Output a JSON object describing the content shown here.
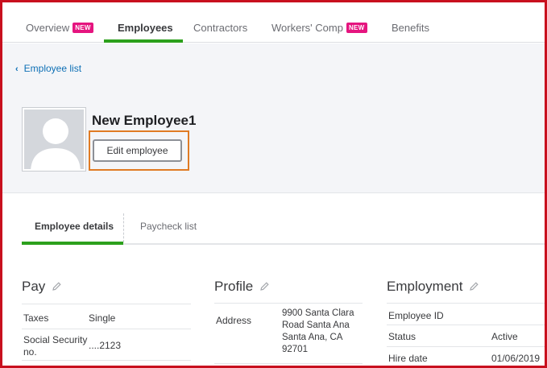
{
  "nav": {
    "tabs": [
      {
        "label": "Overview",
        "badge": "NEW"
      },
      {
        "label": "Employees",
        "badge": ""
      },
      {
        "label": "Contractors",
        "badge": ""
      },
      {
        "label": "Workers' Comp",
        "badge": "NEW"
      },
      {
        "label": "Benefits",
        "badge": ""
      }
    ],
    "active_tab": "Employees"
  },
  "header": {
    "back_link": "Employee list",
    "employee_name": "New Employee1",
    "edit_button": "Edit employee"
  },
  "subtabs": {
    "items": [
      "Employee details",
      "Paycheck list"
    ],
    "active": "Employee details"
  },
  "pay": {
    "title": "Pay",
    "rows": [
      {
        "label": "Taxes",
        "value": "Single"
      },
      {
        "label": "Social Security no.",
        "value": "....2123"
      }
    ]
  },
  "profile": {
    "title": "Profile",
    "address_label": "Address",
    "address_lines": [
      "9900 Santa Clara",
      "Road Santa Ana",
      "Santa Ana, CA",
      "92701"
    ]
  },
  "employment": {
    "title": "Employment",
    "rows": [
      {
        "label": "Employee ID",
        "value": ""
      },
      {
        "label": "Status",
        "value": "Active"
      },
      {
        "label": "Hire date",
        "value": "01/06/2019"
      }
    ]
  },
  "colors": {
    "accent_green": "#2ca01c",
    "badge_pink": "#e5157f",
    "link_blue": "#0d6fb5",
    "highlight_orange": "#e07b24",
    "frame_red": "#c8101e"
  }
}
